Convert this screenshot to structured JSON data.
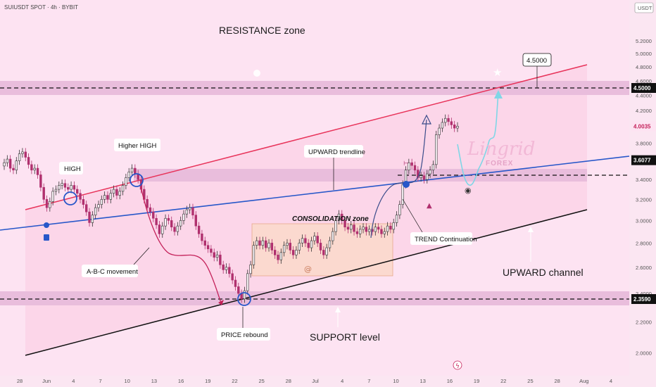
{
  "header": {
    "symbol": "SUIUSDT SPOT · 4h · BYBIT",
    "currency": "USDT"
  },
  "watermark": {
    "line1": "Lingrid",
    "line2": "FOREX"
  },
  "colors": {
    "background": "#fde3f2",
    "zone": "#e9bddc",
    "consolidation": "#fbd9cf",
    "up_candle": "#333333",
    "down_candle": "#b0306e",
    "red_line": "#e8335a",
    "blue_line": "#2757c9",
    "black_line": "#111111",
    "cyan_path": "#7fd6e6",
    "label_bg": "#ffffff"
  },
  "annotations": {
    "resistance_zone": "RESISTANCE zone",
    "support_level": "SUPPORT level",
    "upward_channel": "UPWARD channel",
    "consolidation_zone": "CONSOLIDATION zone",
    "high": "HIGH",
    "higher_high": "Higher HIGH",
    "abc_movement": "A-B-C movement",
    "price_rebound": "PRICE rebound",
    "upward_trendline": "UPWARD trendline",
    "trend_continuation": "TREND Continuation",
    "target": "4.5000"
  },
  "chart_data": {
    "type": "candlestick",
    "title": "SUIUSDT SPOT · 4h · BYBIT",
    "ylabel": "USDT",
    "ylim": [
      1.6,
      5.4
    ],
    "y_scale": "log",
    "y_ticks": [
      "5.2000",
      "5.0000",
      "4.8000",
      "4.6000",
      "4.4000",
      "4.2000",
      "4.0000",
      "3.8000",
      "3.6000",
      "3.4000",
      "3.2000",
      "3.0000",
      "2.8000",
      "2.6000",
      "2.4000",
      "2.2000",
      "2.0000",
      "1.8000"
    ],
    "x_ticks": [
      "28",
      "Jun",
      "4",
      "7",
      "10",
      "13",
      "16",
      "19",
      "22",
      "25",
      "28",
      "Jul",
      "4",
      "7",
      "10",
      "13",
      "16",
      "19",
      "22",
      "25",
      "28",
      "Aug",
      "4"
    ],
    "price_tags": [
      {
        "value": "4.5000",
        "style": "dark"
      },
      {
        "value": "4.0035",
        "style": "red"
      },
      {
        "value": "3.6077",
        "style": "dark"
      },
      {
        "value": "2.3590",
        "style": "dark"
      }
    ],
    "horizontal_levels": [
      4.5,
      3.6077,
      2.359
    ],
    "zones": [
      {
        "name": "resistance",
        "from": 4.42,
        "to": 4.58
      },
      {
        "name": "mid",
        "from": 3.53,
        "to": 3.68
      },
      {
        "name": "support",
        "from": 2.3,
        "to": 2.42
      }
    ],
    "consolidation_range": [
      2.55,
      3.1
    ],
    "key_points": [
      {
        "label": "HIGH",
        "date": "Jun 2",
        "price": 3.38
      },
      {
        "label": "Higher HIGH",
        "date": "Jun 10",
        "price": 3.56
      },
      {
        "label": "PRICE rebound",
        "date": "Jun 22",
        "price": 2.33
      }
    ],
    "closes": [
      3.58,
      3.62,
      3.52,
      3.5,
      3.6,
      3.68,
      3.7,
      3.64,
      3.56,
      3.5,
      3.52,
      3.45,
      3.32,
      3.2,
      3.12,
      3.18,
      3.28,
      3.3,
      3.34,
      3.36,
      3.32,
      3.3,
      3.34,
      3.3,
      3.26,
      3.2,
      3.15,
      3.08,
      2.98,
      3.05,
      3.12,
      3.15,
      3.2,
      3.24,
      3.2,
      3.26,
      3.3,
      3.24,
      3.28,
      3.34,
      3.42,
      3.48,
      3.52,
      3.46,
      3.4,
      3.3,
      3.2,
      3.12,
      3.08,
      3.02,
      2.96,
      2.88,
      2.95,
      3.02,
      3.0,
      2.94,
      2.9,
      2.95,
      3.0,
      3.06,
      3.1,
      3.12,
      3.05,
      2.95,
      2.88,
      2.82,
      2.78,
      2.75,
      2.72,
      2.68,
      2.7,
      2.62,
      2.58,
      2.6,
      2.55,
      2.5,
      2.45,
      2.4,
      2.36,
      2.42,
      2.55,
      2.62,
      2.78,
      2.82,
      2.78,
      2.82,
      2.76,
      2.8,
      2.74,
      2.7,
      2.66,
      2.72,
      2.78,
      2.8,
      2.74,
      2.7,
      2.74,
      2.8,
      2.84,
      2.8,
      2.76,
      2.82,
      2.86,
      2.8,
      2.74,
      2.7,
      2.76,
      2.82,
      2.9,
      3.0,
      3.06,
      3.0,
      2.94,
      2.92,
      2.96,
      2.9,
      2.88,
      2.92,
      2.94,
      2.9,
      2.92,
      2.9,
      2.94,
      2.92,
      2.88,
      2.9,
      2.95,
      2.92,
      2.98,
      3.05,
      3.15,
      3.35,
      3.5,
      3.58,
      3.55,
      3.5,
      3.42,
      3.44,
      3.4,
      3.46,
      3.5,
      3.56,
      3.9,
      3.98,
      4.05,
      4.1,
      4.06,
      4.02,
      3.98,
      4.0035
    ]
  }
}
